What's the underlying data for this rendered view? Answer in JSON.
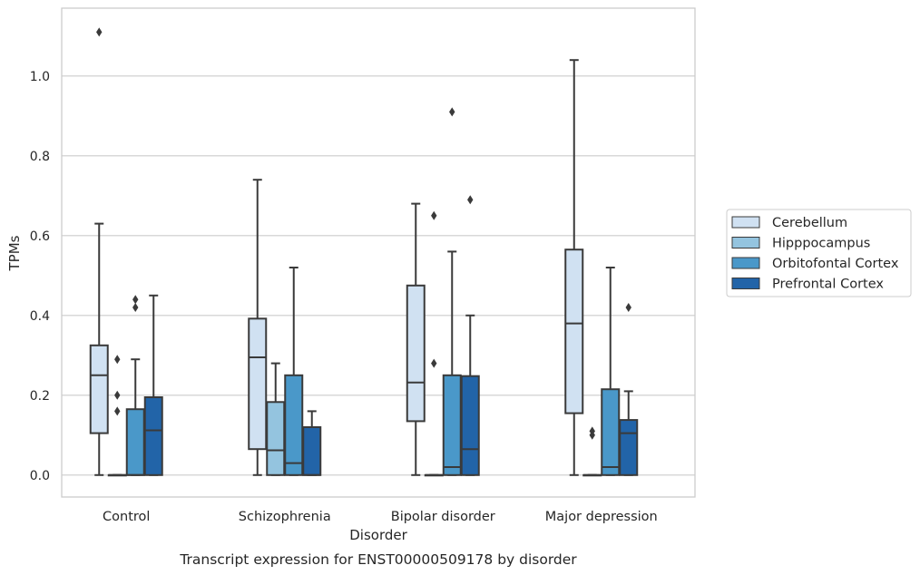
{
  "chart_data": {
    "type": "boxplot",
    "caption": "Transcript expression for ENST00000509178 by disorder",
    "xlabel": "Disorder",
    "ylabel": "TPMs",
    "ylim": [
      -0.055,
      1.17
    ],
    "yticks": [
      "0.0",
      "0.2",
      "0.4",
      "0.6",
      "0.8",
      "1.0"
    ],
    "grid": "horizontal",
    "legend_position": "right",
    "categories": [
      "Control",
      "Schizophrenia",
      "Bipolar disorder",
      "Major depression"
    ],
    "series": [
      {
        "name": "Cerebellum",
        "color": "#d0e1f2",
        "boxes": [
          {
            "whislo": 0.0,
            "q1": 0.105,
            "med": 0.25,
            "q3": 0.325,
            "whishi": 0.63,
            "fliers": [
              1.11
            ]
          },
          {
            "whislo": 0.0,
            "q1": 0.065,
            "med": 0.295,
            "q3": 0.392,
            "whishi": 0.74,
            "fliers": []
          },
          {
            "whislo": 0.0,
            "q1": 0.135,
            "med": 0.232,
            "q3": 0.475,
            "whishi": 0.68,
            "fliers": []
          },
          {
            "whislo": 0.0,
            "q1": 0.155,
            "med": 0.38,
            "q3": 0.565,
            "whishi": 1.04,
            "fliers": []
          }
        ]
      },
      {
        "name": "Hipppocampus",
        "color": "#94c4df",
        "boxes": [
          {
            "whislo": 0.0,
            "q1": 0.0,
            "med": 0.0,
            "q3": 0.0,
            "whishi": 0.0,
            "fliers": [
              0.16,
              0.2,
              0.29
            ]
          },
          {
            "whislo": 0.0,
            "q1": 0.0,
            "med": 0.062,
            "q3": 0.183,
            "whishi": 0.28,
            "fliers": []
          },
          {
            "whislo": 0.0,
            "q1": 0.0,
            "med": 0.0,
            "q3": 0.0,
            "whishi": 0.0,
            "fliers": [
              0.28,
              0.65
            ]
          },
          {
            "whislo": 0.0,
            "q1": 0.0,
            "med": 0.0,
            "q3": 0.0,
            "whishi": 0.0,
            "fliers": [
              0.1,
              0.11
            ]
          }
        ]
      },
      {
        "name": "Orbitofontal Cortex",
        "color": "#4a98c9",
        "boxes": [
          {
            "whislo": 0.0,
            "q1": 0.0,
            "med": 0.0,
            "q3": 0.165,
            "whishi": 0.29,
            "fliers": [
              0.42,
              0.44
            ]
          },
          {
            "whislo": 0.0,
            "q1": 0.0,
            "med": 0.03,
            "q3": 0.25,
            "whishi": 0.52,
            "fliers": []
          },
          {
            "whislo": 0.0,
            "q1": 0.0,
            "med": 0.02,
            "q3": 0.25,
            "whishi": 0.56,
            "fliers": [
              0.91
            ]
          },
          {
            "whislo": 0.0,
            "q1": 0.0,
            "med": 0.02,
            "q3": 0.215,
            "whishi": 0.52,
            "fliers": []
          }
        ]
      },
      {
        "name": "Prefrontal Cortex",
        "color": "#2264a8",
        "boxes": [
          {
            "whislo": 0.0,
            "q1": 0.0,
            "med": 0.112,
            "q3": 0.195,
            "whishi": 0.45,
            "fliers": []
          },
          {
            "whislo": 0.0,
            "q1": 0.0,
            "med": 0.0,
            "q3": 0.12,
            "whishi": 0.16,
            "fliers": []
          },
          {
            "whislo": 0.0,
            "q1": 0.0,
            "med": 0.065,
            "q3": 0.248,
            "whishi": 0.4,
            "fliers": [
              0.69
            ]
          },
          {
            "whislo": 0.0,
            "q1": 0.0,
            "med": 0.105,
            "q3": 0.138,
            "whishi": 0.21,
            "fliers": [
              0.42
            ]
          }
        ]
      }
    ]
  }
}
